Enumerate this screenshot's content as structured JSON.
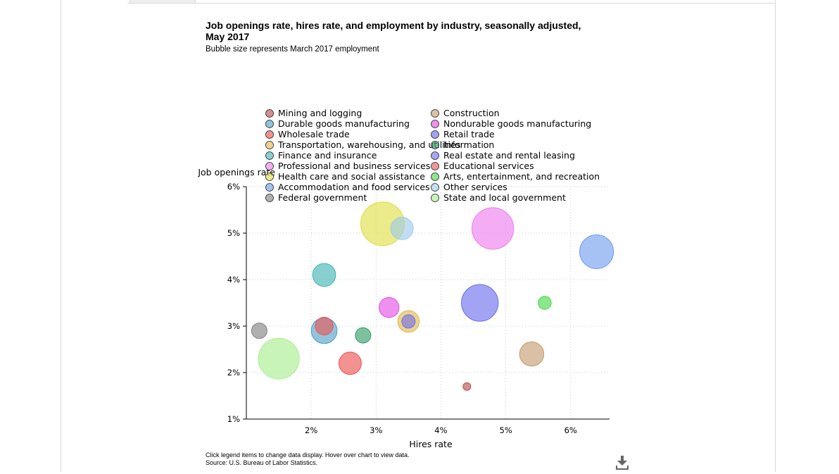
{
  "title": "Job openings rate, hires rate, and employment by industry, seasonally adjusted, May 2017",
  "subtitle": "Bubble size represents March 2017 employment",
  "footer": {
    "line1": "Click legend items to change data display. Hover over chart to view data.",
    "line2": "Source: U.S. Bureau of Labor Statistics."
  },
  "icons": {
    "download": "download-icon"
  },
  "chart_data": {
    "type": "scatter",
    "xlabel": "Hires rate",
    "ylabel": "Job openings rate",
    "xlim": [
      1.0,
      6.6
    ],
    "ylim": [
      1.0,
      6.0
    ],
    "xticks": [
      2,
      3,
      4,
      5,
      6
    ],
    "yticks": [
      1,
      2,
      3,
      4,
      5,
      6
    ],
    "tick_suffix": "%",
    "grid": true,
    "legend": "top-center, two columns",
    "series": [
      {
        "name": "Mining and logging",
        "color": "#b84a4a",
        "x": 4.4,
        "y": 1.7,
        "size": 0.7
      },
      {
        "name": "Construction",
        "color": "#c49a6c",
        "x": 5.4,
        "y": 2.4,
        "size": 6.9
      },
      {
        "name": "Durable goods manufacturing",
        "color": "#4e9fc7",
        "x": 2.2,
        "y": 2.9,
        "size": 7.8
      },
      {
        "name": "Nondurable goods manufacturing",
        "color": "#e34de3",
        "x": 3.2,
        "y": 3.4,
        "size": 4.7
      },
      {
        "name": "Wholesale trade",
        "color": "#ee4d4d",
        "x": 2.6,
        "y": 2.2,
        "size": 5.9
      },
      {
        "name": "Retail trade",
        "color": "#6b6bee",
        "x": 4.6,
        "y": 3.5,
        "size": 15.9
      },
      {
        "name": "Transportation, warehousing, and utilities",
        "color": "#e0b84a",
        "x": 3.5,
        "y": 3.1,
        "size": 5.5
      },
      {
        "name": "Information",
        "color": "#2e9b63",
        "x": 2.8,
        "y": 2.8,
        "size": 2.8
      },
      {
        "name": "Finance and insurance",
        "color": "#3fb3b3",
        "x": 2.2,
        "y": 4.1,
        "size": 6.2
      },
      {
        "name": "Real estate and rental leasing",
        "color": "#7070ee",
        "x": 3.5,
        "y": 3.1,
        "size": 2.1
      },
      {
        "name": "Professional and business services",
        "color": "#ee7aee",
        "x": 4.8,
        "y": 5.1,
        "size": 20.4
      },
      {
        "name": "Educational services",
        "color": "#ee5555",
        "x": 2.2,
        "y": 3.0,
        "size": 3.7
      },
      {
        "name": "Health care and social assistance",
        "color": "#dede40",
        "x": 3.1,
        "y": 5.2,
        "size": 22.4
      },
      {
        "name": "Arts, entertainment, and recreation",
        "color": "#44d944",
        "x": 5.6,
        "y": 3.5,
        "size": 2.0
      },
      {
        "name": "Accommodation and food services",
        "color": "#6f9bee",
        "x": 6.4,
        "y": 4.6,
        "size": 13.5
      },
      {
        "name": "Other services",
        "color": "#9cc9ee",
        "x": 3.4,
        "y": 5.1,
        "size": 5.9
      },
      {
        "name": "Federal government",
        "color": "#808080",
        "x": 1.2,
        "y": 2.9,
        "size": 2.8
      },
      {
        "name": "State and local government",
        "color": "#a8ee8c",
        "x": 1.5,
        "y": 2.3,
        "size": 19.6
      }
    ]
  }
}
